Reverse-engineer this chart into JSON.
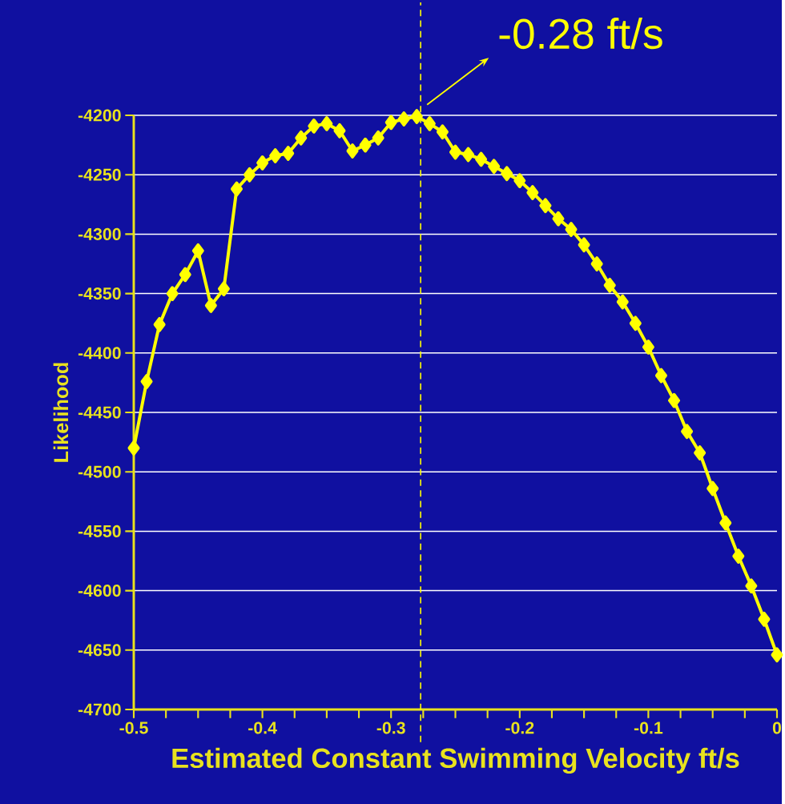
{
  "chart_data": {
    "type": "line",
    "xlabel": "Estimated Constant Swimming Velocity ft/s",
    "ylabel": "Likelihood",
    "series": [
      {
        "color": "#ffff00",
        "x": [
          -0.5,
          -0.49,
          -0.48,
          -0.47,
          -0.46,
          -0.45,
          -0.44,
          -0.43,
          -0.42,
          -0.41,
          -0.4,
          -0.39,
          -0.38,
          -0.37,
          -0.36,
          -0.35,
          -0.34,
          -0.33,
          -0.32,
          -0.31,
          -0.3,
          -0.29,
          -0.28,
          -0.27,
          -0.26,
          -0.25,
          -0.24,
          -0.23,
          -0.22,
          -0.21,
          -0.2,
          -0.19,
          -0.18,
          -0.17,
          -0.16,
          -0.15,
          -0.14,
          -0.13,
          -0.12,
          -0.11,
          -0.1,
          -0.09,
          -0.08,
          -0.07,
          -0.06,
          -0.05,
          -0.04,
          -0.03,
          -0.02,
          -0.01,
          0
        ],
        "values": [
          -4480,
          -4424,
          -4376,
          -4350,
          -4334,
          -4314,
          -4360,
          -4346,
          -4262,
          -4250,
          -4240,
          -4234,
          -4232,
          -4219,
          -4209,
          -4207,
          -4213,
          -4230,
          -4225,
          -4219,
          -4206,
          -4203,
          -4201,
          -4207,
          -4214,
          -4231,
          -4233,
          -4237,
          -4243,
          -4249,
          -4255,
          -4265,
          -4276,
          -4287,
          -4296,
          -4309,
          -4325,
          -4343,
          -4357,
          -4375,
          -4395,
          -4419,
          -4440,
          -4466,
          -4484,
          -4514,
          -4543,
          -4571,
          -4596,
          -4624,
          -4654
        ]
      }
    ],
    "xlim": [
      -0.5,
      0
    ],
    "ylim": [
      -4700,
      -4200
    ],
    "xticks": [
      -0.5,
      {
        "value": -0.475,
        "label": null
      },
      {
        "value": -0.45,
        "label": null
      },
      {
        "value": -0.425,
        "label": null
      },
      -0.4,
      {
        "value": -0.375,
        "label": null
      },
      {
        "value": -0.35,
        "label": null
      },
      {
        "value": -0.325,
        "label": null
      },
      -0.3,
      {
        "value": -0.275,
        "label": null
      },
      {
        "value": -0.25,
        "label": null
      },
      {
        "value": -0.225,
        "label": null
      },
      -0.2,
      {
        "value": -0.175,
        "label": null
      },
      {
        "value": -0.15,
        "label": null
      },
      {
        "value": -0.125,
        "label": null
      },
      -0.1,
      {
        "value": -0.075,
        "label": null
      },
      {
        "value": -0.05,
        "label": null
      },
      {
        "value": -0.025,
        "label": null
      },
      0
    ],
    "yticks": [
      -4700,
      -4650,
      -4600,
      -4550,
      -4500,
      -4450,
      -4400,
      -4350,
      -4300,
      -4250,
      -4200
    ],
    "ref_lines": [
      {
        "axis": "x",
        "value": -0.277,
        "label": "-0.28 ft/s",
        "color": "#ffff00",
        "line_style": "dashed"
      }
    ],
    "grid": "y",
    "marker": "diamond",
    "line_style": "solid"
  }
}
